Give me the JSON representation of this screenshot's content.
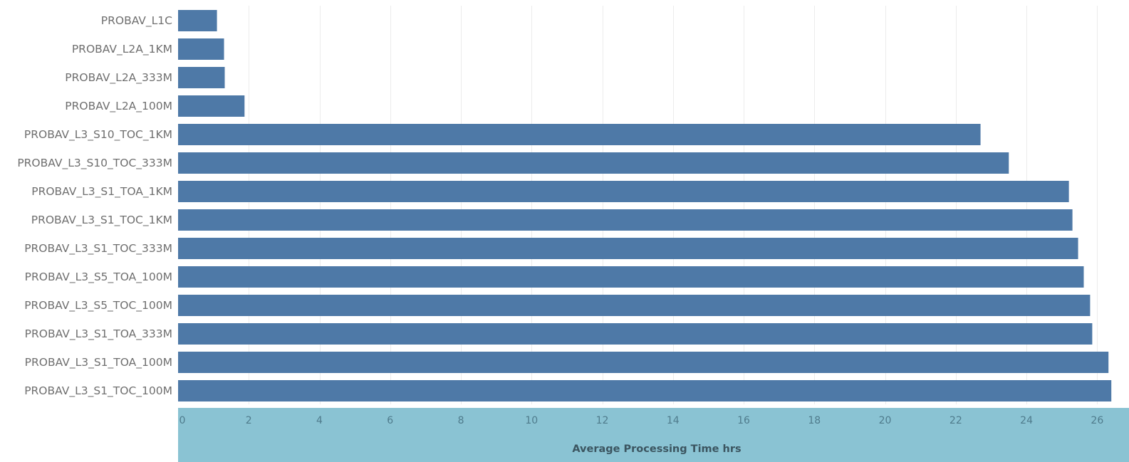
{
  "chart_data": {
    "type": "bar",
    "orientation": "horizontal",
    "title": "",
    "xlabel": "Average Processing Time hrs",
    "ylabel": "",
    "xlim": [
      0,
      26.9
    ],
    "x_ticks": [
      0,
      2,
      4,
      6,
      8,
      10,
      12,
      14,
      16,
      18,
      20,
      22,
      24,
      26
    ],
    "grid": true,
    "categories": [
      "PROBAV_L1C",
      "PROBAV_L2A_1KM",
      "PROBAV_L2A_333M",
      "PROBAV_L2A_100M",
      "PROBAV_L3_S10_TOC_1KM",
      "PROBAV_L3_S10_TOC_333M",
      "PROBAV_L3_S1_TOA_1KM",
      "PROBAV_L3_S1_TOC_1KM",
      "PROBAV_L3_S1_TOC_333M",
      "PROBAV_L3_S5_TOA_100M",
      "PROBAV_L3_S5_TOC_100M",
      "PROBAV_L3_S1_TOA_333M",
      "PROBAV_L3_S1_TOA_100M",
      "PROBAV_L3_S1_TOC_100M"
    ],
    "values": [
      1.1,
      1.3,
      1.32,
      1.88,
      22.7,
      23.5,
      25.2,
      25.3,
      25.46,
      25.62,
      25.8,
      25.86,
      26.32,
      26.4
    ],
    "colors": {
      "bar": "#4e79a7",
      "axis_band": "#8ac3d3",
      "tick_text": "#4f7b8c",
      "category_text": "#6f6f6f"
    }
  }
}
